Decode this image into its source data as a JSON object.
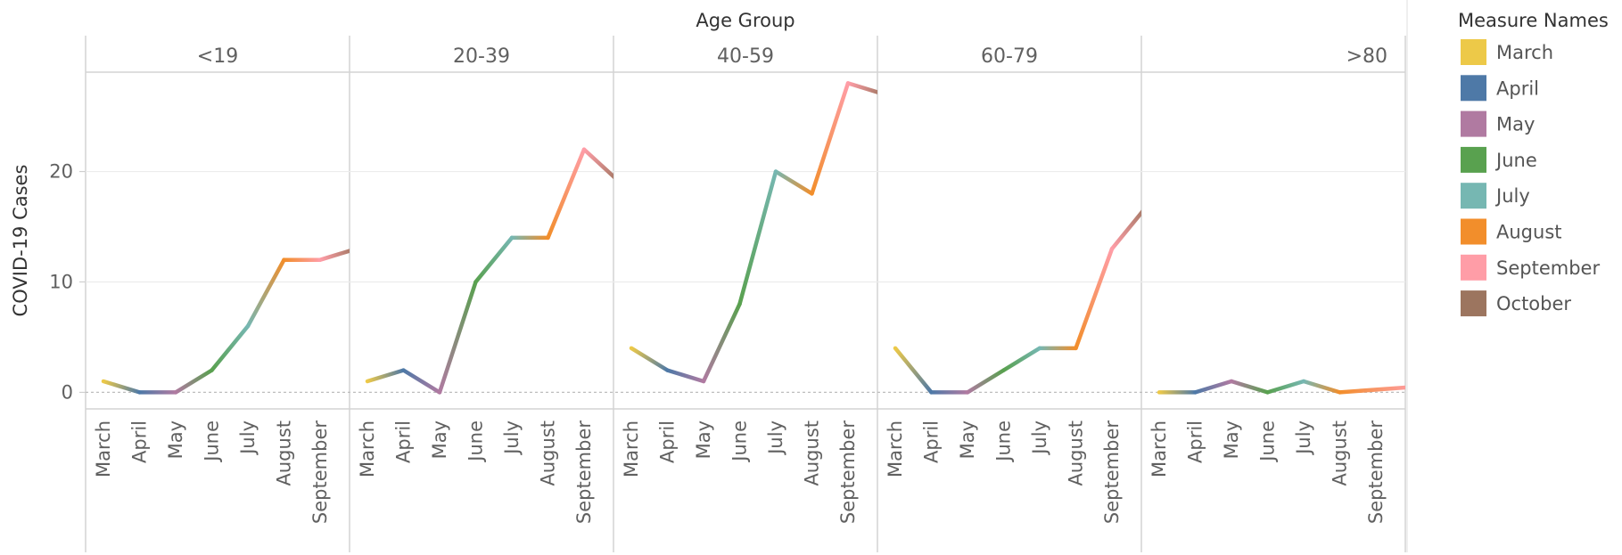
{
  "chart_data": {
    "type": "line",
    "column_header_title": "Age Group",
    "ylabel": "COVID-19 Cases",
    "y_ticks": [
      0,
      10,
      20
    ],
    "ylim": [
      -1.5,
      29
    ],
    "grid": "horizontal",
    "legend_placement": "right",
    "legend": {
      "title": "Measure Names",
      "items": [
        {
          "label": "March",
          "color": "#EDC948"
        },
        {
          "label": "April",
          "color": "#4E79A7"
        },
        {
          "label": "May",
          "color": "#B07AA1"
        },
        {
          "label": "June",
          "color": "#59A14F"
        },
        {
          "label": "July",
          "color": "#76B7B2"
        },
        {
          "label": "August",
          "color": "#F28E2B"
        },
        {
          "label": "September",
          "color": "#FF9DA7"
        },
        {
          "label": "October",
          "color": "#9C755F"
        }
      ]
    },
    "categories": [
      "March",
      "April",
      "May",
      "June",
      "July",
      "August",
      "September",
      "October"
    ],
    "facets": [
      {
        "name": "<19",
        "values": [
          1,
          0,
          0,
          2,
          6,
          12,
          12,
          13
        ]
      },
      {
        "name": "20-39",
        "values": [
          1,
          2,
          0,
          10,
          14,
          14,
          22,
          19
        ]
      },
      {
        "name": "40-59",
        "values": [
          4,
          2,
          1,
          8,
          20,
          18,
          28,
          27
        ]
      },
      {
        "name": "60-79",
        "values": [
          4,
          0,
          0,
          2,
          4,
          4,
          13,
          17
        ]
      },
      {
        "name": ">80",
        "values": [
          0,
          0,
          1,
          0,
          1,
          0,
          null,
          null
        ]
      }
    ]
  }
}
